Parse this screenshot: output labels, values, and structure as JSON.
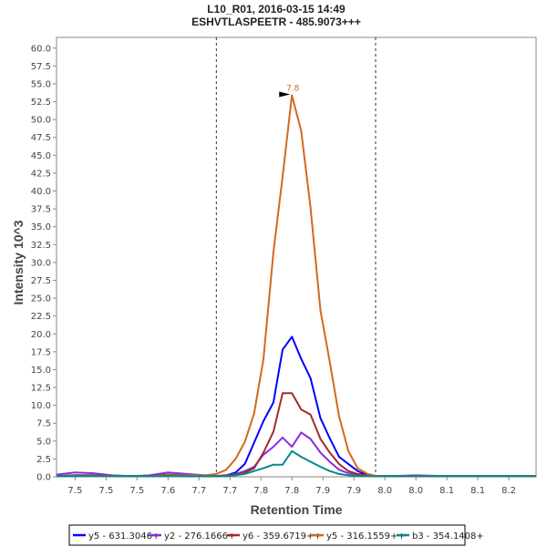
{
  "chart_data": {
    "type": "line",
    "title": "L10_R01, 2016-03-15 14:49",
    "subtitle": "ESHVTLASPEETR - 485.9073+++",
    "xlabel": "Retention Time",
    "ylabel": "Intensity 10^3",
    "xlim": [
      7.42,
      8.194
    ],
    "ylim": [
      0,
      61.5
    ],
    "x_ticks": [
      7.45,
      7.5,
      7.55,
      7.6,
      7.65,
      7.7,
      7.75,
      7.8,
      7.85,
      7.9,
      7.95,
      8.0,
      8.05,
      8.1,
      8.15
    ],
    "x_tick_labels": [
      "7.5",
      "7.5",
      "7.5",
      "7.6",
      "7.7",
      "7.7",
      "7.8",
      "7.8",
      "7.9",
      "7.9",
      "8.0",
      "8.0",
      "8.1",
      "8.1",
      "8.2"
    ],
    "y_ticks": [
      0,
      2.5,
      5,
      7.5,
      10,
      12.5,
      15,
      17.5,
      20,
      22.5,
      25,
      27.5,
      30,
      32.5,
      35,
      37.5,
      40,
      42.5,
      45,
      47.5,
      50,
      52.5,
      55,
      57.5,
      60
    ],
    "y_tick_labels": [
      "0.0",
      "2.5",
      "5.0",
      "7.5",
      "10.0",
      "12.5",
      "15.0",
      "17.5",
      "20.0",
      "22.5",
      "25.0",
      "27.5",
      "30.0",
      "32.5",
      "35.0",
      "37.5",
      "40.0",
      "42.5",
      "45.0",
      "47.5",
      "50.0",
      "52.5",
      "55.0",
      "57.5",
      "60.0"
    ],
    "integration_boundaries": [
      7.678,
      7.935
    ],
    "peak_annotation": {
      "label": "7.8",
      "x": 7.8,
      "y": 53.4,
      "color": "#d2691e"
    },
    "legend_position": "bottom",
    "x": [
      7.42,
      7.45,
      7.48,
      7.51,
      7.54,
      7.57,
      7.6,
      7.63,
      7.66,
      7.678,
      7.694,
      7.709,
      7.724,
      7.739,
      7.754,
      7.77,
      7.785,
      7.8,
      7.815,
      7.83,
      7.846,
      7.861,
      7.876,
      7.891,
      7.906,
      7.922,
      7.937,
      7.96,
      8.0,
      8.05,
      8.1,
      8.15,
      8.194
    ],
    "series": [
      {
        "name": "y5 - 631.3046+",
        "color": "#0000ff",
        "values": [
          0.1,
          0.2,
          0.2,
          0.1,
          0.1,
          0.1,
          0.2,
          0.1,
          0.1,
          0.1,
          0.2,
          0.6,
          1.8,
          4.8,
          7.8,
          10.4,
          17.8,
          19.6,
          16.5,
          13.8,
          8.2,
          5.4,
          2.8,
          1.8,
          0.8,
          0.2,
          0.1,
          0.1,
          0.1,
          0.1,
          0.1,
          0.1,
          0.1
        ]
      },
      {
        "name": "y2 - 276.1666+",
        "color": "#8a2be2",
        "values": [
          0.3,
          0.6,
          0.5,
          0.2,
          0.1,
          0.2,
          0.6,
          0.4,
          0.2,
          0.1,
          0.2,
          0.4,
          0.8,
          1.4,
          3.1,
          4.2,
          5.5,
          4.2,
          6.2,
          5.3,
          3.4,
          2.1,
          1.0,
          0.5,
          0.3,
          0.2,
          0.1,
          0.1,
          0.2,
          0.1,
          0.1,
          0.1,
          0.1
        ]
      },
      {
        "name": "y6 - 359.6719++",
        "color": "#a52a2a",
        "values": [
          0.1,
          0.2,
          0.2,
          0.1,
          0.1,
          0.1,
          0.3,
          0.2,
          0.1,
          0.1,
          0.2,
          0.3,
          0.6,
          1.2,
          3.4,
          6.3,
          11.7,
          11.7,
          9.4,
          8.7,
          5.3,
          3.4,
          1.8,
          0.8,
          0.4,
          0.2,
          0.1,
          0.1,
          0.1,
          0.1,
          0.1,
          0.1,
          0.1
        ]
      },
      {
        "name": "y5 - 316.1559++",
        "color": "#d2691e",
        "values": [
          0.1,
          0.1,
          0.1,
          0.1,
          0.1,
          0.1,
          0.2,
          0.2,
          0.2,
          0.4,
          1.0,
          2.5,
          4.9,
          8.9,
          16.5,
          31.4,
          42.0,
          53.4,
          48.4,
          37.7,
          23.3,
          16.1,
          8.5,
          3.6,
          1.2,
          0.4,
          0.1,
          0.1,
          0.1,
          0.1,
          0.1,
          0.1,
          0.1
        ]
      },
      {
        "name": "b3 - 354.1408+",
        "color": "#008b8b",
        "values": [
          0.1,
          0.1,
          0.1,
          0.1,
          0.1,
          0.1,
          0.1,
          0.1,
          0.1,
          0.1,
          0.1,
          0.2,
          0.4,
          0.8,
          1.2,
          1.7,
          1.7,
          3.6,
          2.8,
          2.1,
          1.4,
          0.8,
          0.4,
          0.2,
          0.1,
          0.1,
          0.1,
          0.1,
          0.1,
          0.1,
          0.1,
          0.1,
          0.1
        ]
      }
    ]
  }
}
